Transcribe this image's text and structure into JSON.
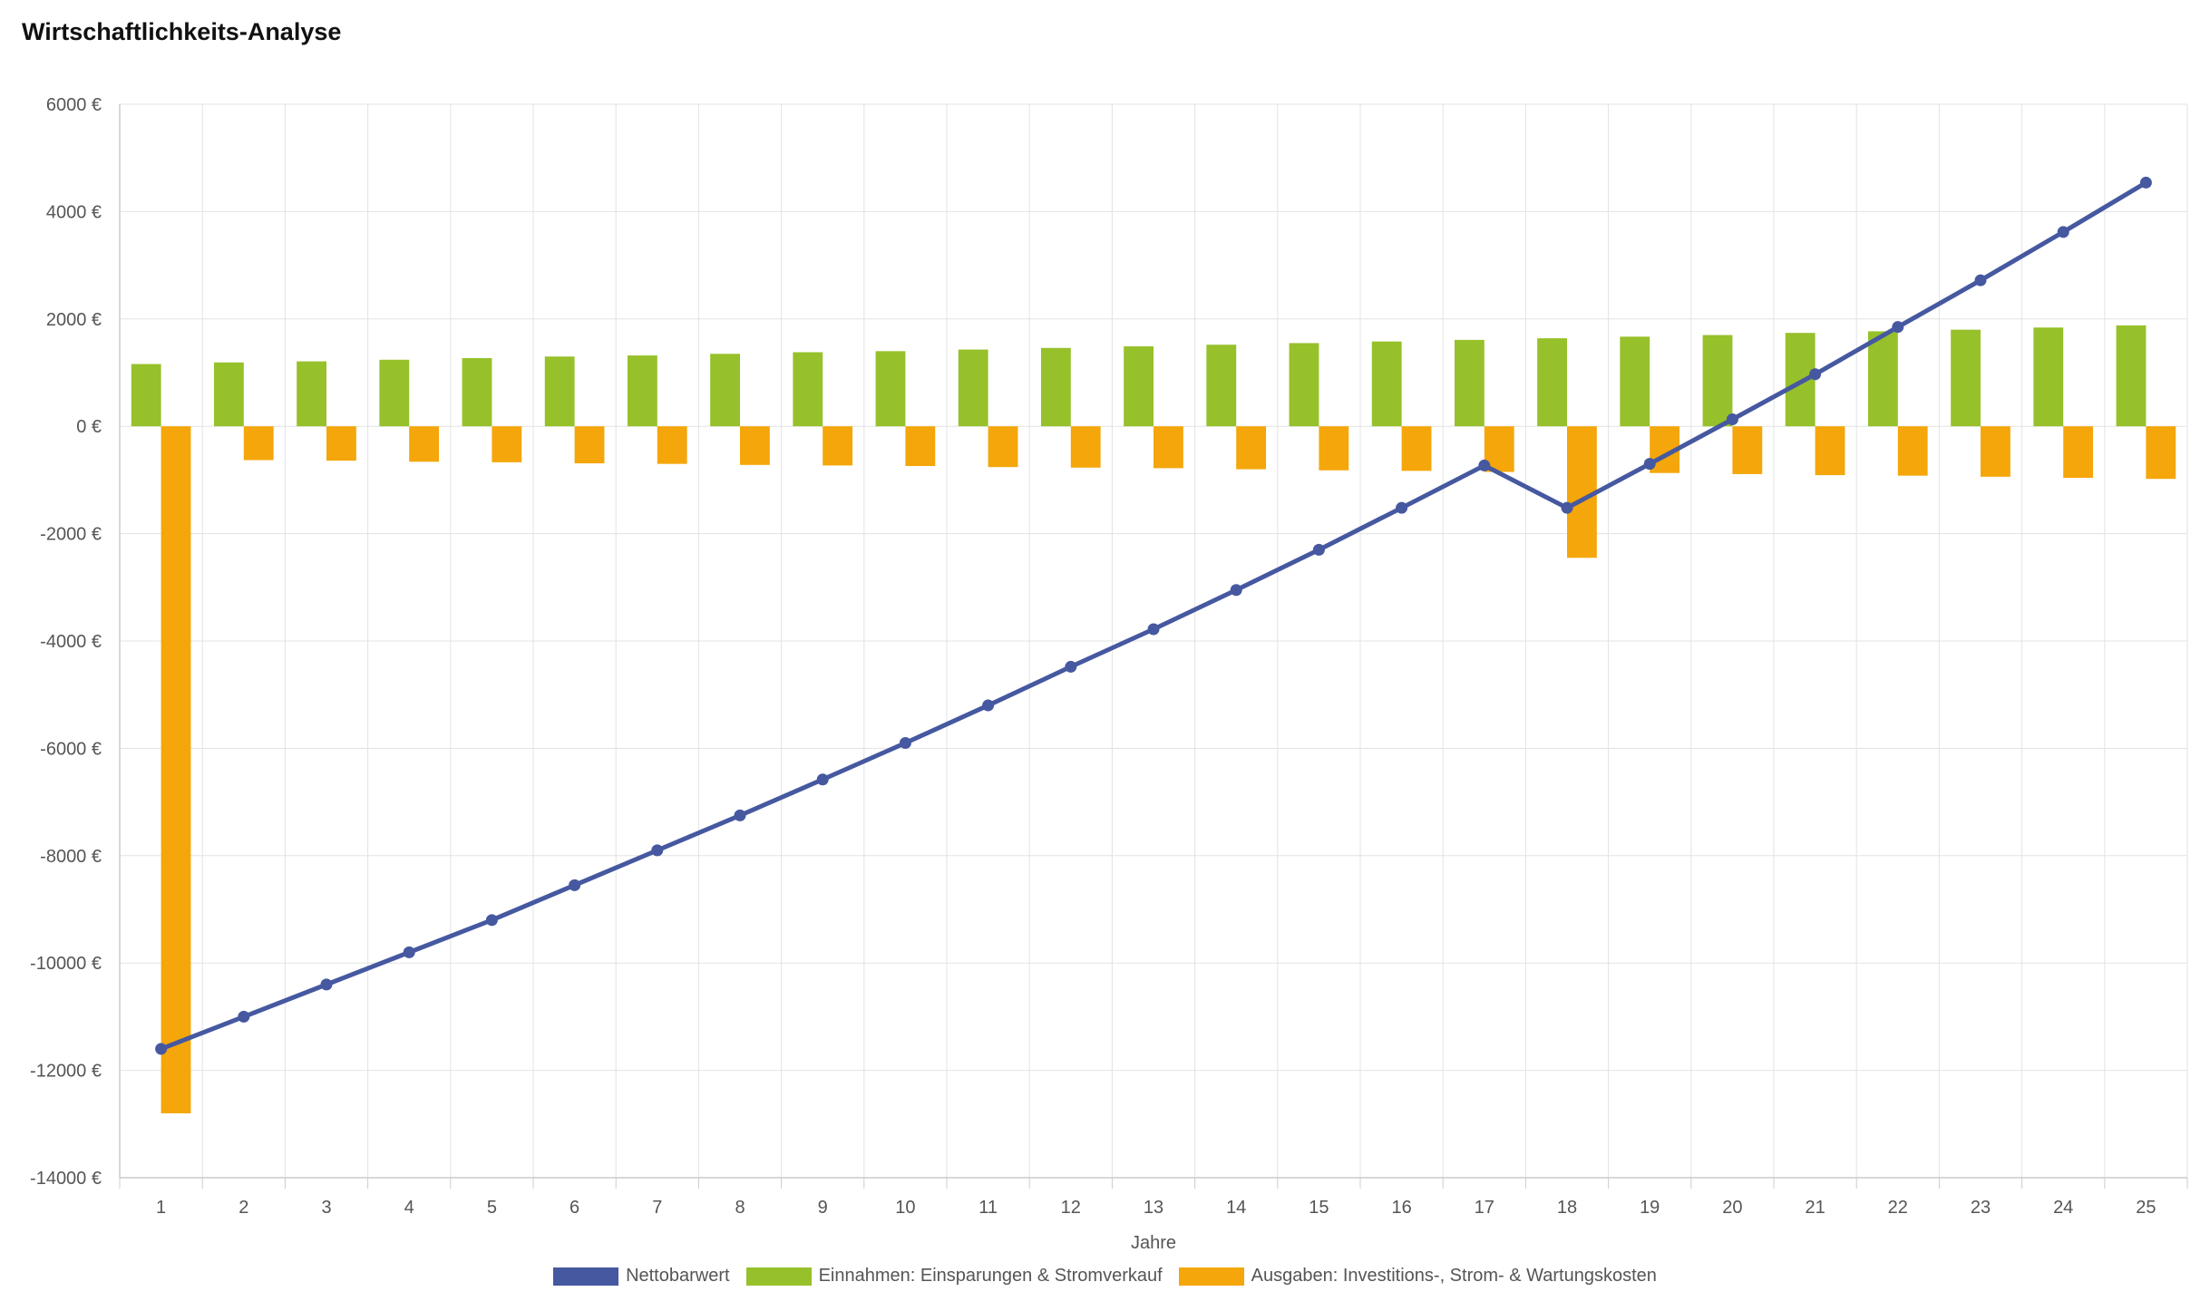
{
  "title": "Wirtschaftlichkeits-Analyse",
  "chart_data": {
    "type": "bar",
    "title": "Wirtschaftlichkeits-Analyse",
    "xlabel": "Jahre",
    "ylabel": "",
    "currency_suffix": " €",
    "ylim": [
      -14000,
      6000
    ],
    "yticks": [
      6000,
      4000,
      2000,
      0,
      -2000,
      -4000,
      -6000,
      -8000,
      -10000,
      -12000,
      -14000
    ],
    "categories": [
      "1",
      "2",
      "3",
      "4",
      "5",
      "6",
      "7",
      "8",
      "9",
      "10",
      "11",
      "12",
      "13",
      "14",
      "15",
      "16",
      "17",
      "18",
      "19",
      "20",
      "21",
      "22",
      "23",
      "24",
      "25"
    ],
    "grid": true,
    "legend_position": "bottom",
    "series": [
      {
        "name": "Nettobarwert",
        "kind": "line",
        "color": "#4558a0",
        "values": [
          -11600,
          -11000,
          -10400,
          -9800,
          -9200,
          -8550,
          -7900,
          -7250,
          -6580,
          -5900,
          -5200,
          -4480,
          -3780,
          -3050,
          -2300,
          -1520,
          -730,
          -1520,
          -700,
          130,
          970,
          1850,
          2720,
          3620,
          4540
        ]
      },
      {
        "name": "Einnahmen: Einsparungen & Stromverkauf",
        "kind": "bar",
        "color": "#96c12a",
        "values": [
          1160,
          1190,
          1210,
          1240,
          1270,
          1300,
          1320,
          1350,
          1380,
          1400,
          1430,
          1460,
          1490,
          1520,
          1550,
          1580,
          1610,
          1640,
          1670,
          1700,
          1740,
          1770,
          1800,
          1840,
          1880
        ]
      },
      {
        "name": "Ausgaben: Investitions-, Strom- & Wartungskosten",
        "kind": "bar",
        "color": "#f4a60a",
        "values": [
          -12800,
          -630,
          -640,
          -660,
          -670,
          -690,
          -700,
          -720,
          -730,
          -740,
          -760,
          -770,
          -780,
          -800,
          -820,
          -830,
          -850,
          -2450,
          -870,
          -890,
          -910,
          -920,
          -940,
          -960,
          -980
        ]
      }
    ]
  }
}
